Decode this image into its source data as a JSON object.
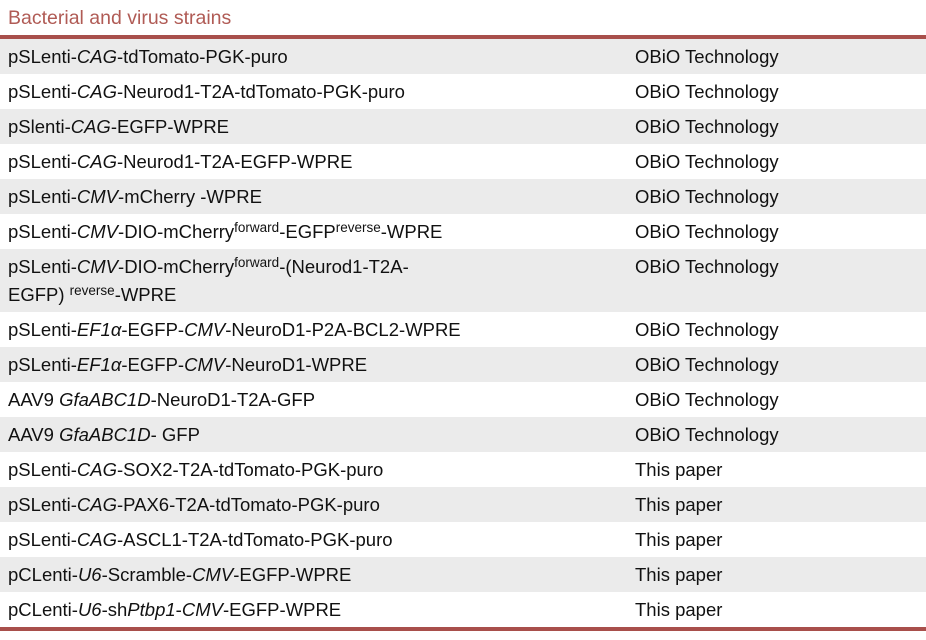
{
  "title": "Bacterial and virus strains",
  "colors": {
    "accent_rule": "#a84f4b",
    "title_text": "#b05b55",
    "row_alt_bg": "#ebebeb",
    "body_text": "#111111"
  },
  "table": {
    "rows": [
      {
        "source": "OBiO Technology",
        "segments": [
          {
            "t": "pSLenti-"
          },
          {
            "t": "CAG",
            "i": true
          },
          {
            "t": "-tdTomato-PGK-puro"
          }
        ]
      },
      {
        "source": "OBiO Technology",
        "segments": [
          {
            "t": "pSLenti-"
          },
          {
            "t": "CAG",
            "i": true
          },
          {
            "t": "-Neurod1-T2A-tdTomato-PGK-puro"
          }
        ]
      },
      {
        "source": "OBiO Technology",
        "segments": [
          {
            "t": "pSlenti-"
          },
          {
            "t": "CAG",
            "i": true
          },
          {
            "t": "-EGFP-WPRE"
          }
        ]
      },
      {
        "source": "OBiO Technology",
        "segments": [
          {
            "t": "pSLenti-"
          },
          {
            "t": "CAG",
            "i": true
          },
          {
            "t": "-Neurod1-T2A-EGFP-WPRE"
          }
        ]
      },
      {
        "source": "OBiO Technology",
        "segments": [
          {
            "t": "pSLenti-"
          },
          {
            "t": "CMV",
            "i": true
          },
          {
            "t": "-mCherry -WPRE"
          }
        ]
      },
      {
        "source": "OBiO Technology",
        "segments": [
          {
            "t": "pSLenti-"
          },
          {
            "t": "CMV",
            "i": true
          },
          {
            "t": "-DIO-mCherry"
          },
          {
            "t": "forward",
            "sup": true
          },
          {
            "t": "-EGFP"
          },
          {
            "t": "reverse",
            "sup": true
          },
          {
            "t": "-WPRE"
          }
        ]
      },
      {
        "source": "OBiO Technology",
        "segments": [
          {
            "t": "pSLenti-"
          },
          {
            "t": "CMV",
            "i": true
          },
          {
            "t": "-DIO-mCherry"
          },
          {
            "t": "forward",
            "sup": true
          },
          {
            "t": "-(Neurod1-T2A-"
          },
          {
            "br": true
          },
          {
            "t": "EGFP) "
          },
          {
            "t": "reverse",
            "sup": true
          },
          {
            "t": "-WPRE"
          }
        ]
      },
      {
        "source": "OBiO Technology",
        "segments": [
          {
            "t": "pSLenti-"
          },
          {
            "t": "EF1α",
            "i": true
          },
          {
            "t": "-EGFP-"
          },
          {
            "t": "CMV",
            "i": true
          },
          {
            "t": "-NeuroD1-P2A-BCL2-WPRE"
          }
        ]
      },
      {
        "source": "OBiO Technology",
        "segments": [
          {
            "t": "pSLenti-"
          },
          {
            "t": "EF1α",
            "i": true
          },
          {
            "t": "-EGFP-"
          },
          {
            "t": "CMV",
            "i": true
          },
          {
            "t": "-NeuroD1-WPRE"
          }
        ]
      },
      {
        "source": "OBiO Technology",
        "segments": [
          {
            "t": "AAV9 "
          },
          {
            "t": "GfaABC1D",
            "i": true
          },
          {
            "t": "-NeuroD1-T2A-GFP"
          }
        ]
      },
      {
        "source": "OBiO Technology",
        "segments": [
          {
            "t": "AAV9 "
          },
          {
            "t": "GfaABC1D",
            "i": true
          },
          {
            "t": "- GFP"
          }
        ]
      },
      {
        "source": "This paper",
        "segments": [
          {
            "t": "pSLenti-"
          },
          {
            "t": "CAG",
            "i": true
          },
          {
            "t": "-SOX2-T2A-tdTomato-PGK-puro"
          }
        ]
      },
      {
        "source": "This paper",
        "segments": [
          {
            "t": "pSLenti-"
          },
          {
            "t": "CAG",
            "i": true
          },
          {
            "t": "-PAX6-T2A-tdTomato-PGK-puro"
          }
        ]
      },
      {
        "source": "This paper",
        "segments": [
          {
            "t": "pSLenti-"
          },
          {
            "t": "CAG",
            "i": true
          },
          {
            "t": "-ASCL1-T2A-tdTomato-PGK-puro"
          }
        ]
      },
      {
        "source": "This paper",
        "segments": [
          {
            "t": "pCLenti-"
          },
          {
            "t": "U6",
            "i": true
          },
          {
            "t": "-Scramble-"
          },
          {
            "t": "CMV",
            "i": true
          },
          {
            "t": "-EGFP-WPRE"
          }
        ]
      },
      {
        "source": "This paper",
        "segments": [
          {
            "t": "pCLenti-"
          },
          {
            "t": "U6",
            "i": true
          },
          {
            "t": "-sh"
          },
          {
            "t": "Ptbp1",
            "i": true
          },
          {
            "t": "-"
          },
          {
            "t": "CMV",
            "i": true
          },
          {
            "t": "-EGFP-WPRE"
          }
        ]
      }
    ]
  }
}
